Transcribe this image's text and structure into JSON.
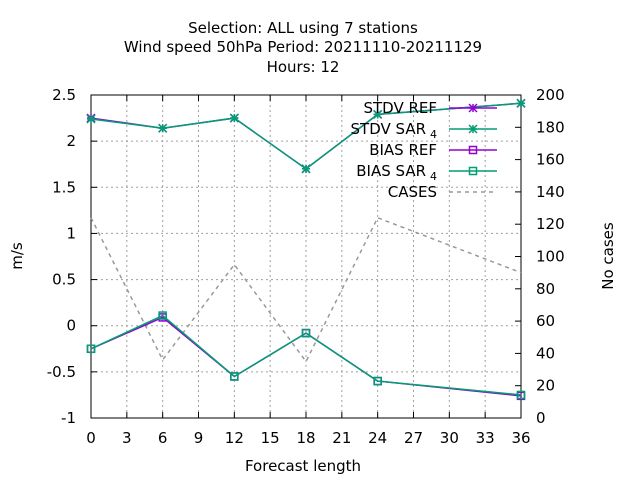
{
  "chart_data": {
    "type": "line",
    "title_lines": [
      "Selection: ALL using     7 stations",
      "Wind speed 50hPa   Period: 20211110-20211129",
      "Hours:  12"
    ],
    "xlabel": "Forecast length",
    "ylabel": "m/s",
    "y2label": "No cases",
    "x_ticks": [
      0,
      3,
      6,
      9,
      12,
      15,
      18,
      21,
      24,
      27,
      30,
      33,
      36
    ],
    "y_ticks": [
      -1,
      -0.5,
      0,
      0.5,
      1,
      1.5,
      2,
      2.5
    ],
    "y_tick_labels": [
      "-1",
      "-0.5",
      "0",
      "0.5",
      "1",
      "1.5",
      "2",
      "2.5"
    ],
    "y2_ticks": [
      0,
      20,
      40,
      60,
      80,
      100,
      120,
      140,
      160,
      180,
      200
    ],
    "xlim": [
      0,
      36
    ],
    "ylim": [
      -1,
      2.5
    ],
    "y2lim": [
      0,
      200
    ],
    "grid": true,
    "legend_position": "top-right",
    "x": [
      0,
      6,
      12,
      18,
      24,
      36
    ],
    "series": [
      {
        "name": "STDV REF",
        "sub": "",
        "axis": "y",
        "color": "#9400d3",
        "marker": "star",
        "dash": "",
        "values": [
          2.25,
          2.14,
          2.25,
          1.7,
          2.29,
          2.41
        ]
      },
      {
        "name": "STDV SAR",
        "sub": "4",
        "axis": "y",
        "color": "#009e73",
        "marker": "star",
        "dash": "",
        "values": [
          2.24,
          2.14,
          2.25,
          1.7,
          2.29,
          2.41
        ]
      },
      {
        "name": "BIAS REF",
        "sub": "",
        "axis": "y",
        "color": "#9400d3",
        "marker": "square",
        "dash": "",
        "values": [
          -0.25,
          0.09,
          -0.55,
          -0.08,
          -0.6,
          -0.76
        ]
      },
      {
        "name": "BIAS SAR",
        "sub": "4",
        "axis": "y",
        "color": "#009e73",
        "marker": "square",
        "dash": "",
        "values": [
          -0.25,
          0.11,
          -0.55,
          -0.08,
          -0.6,
          -0.75
        ]
      },
      {
        "name": "CASES",
        "sub": "",
        "axis": "y2",
        "color": "#999999",
        "marker": "none",
        "dash": "4,4",
        "values": [
          124,
          36,
          95,
          35,
          124,
          90
        ]
      }
    ]
  }
}
